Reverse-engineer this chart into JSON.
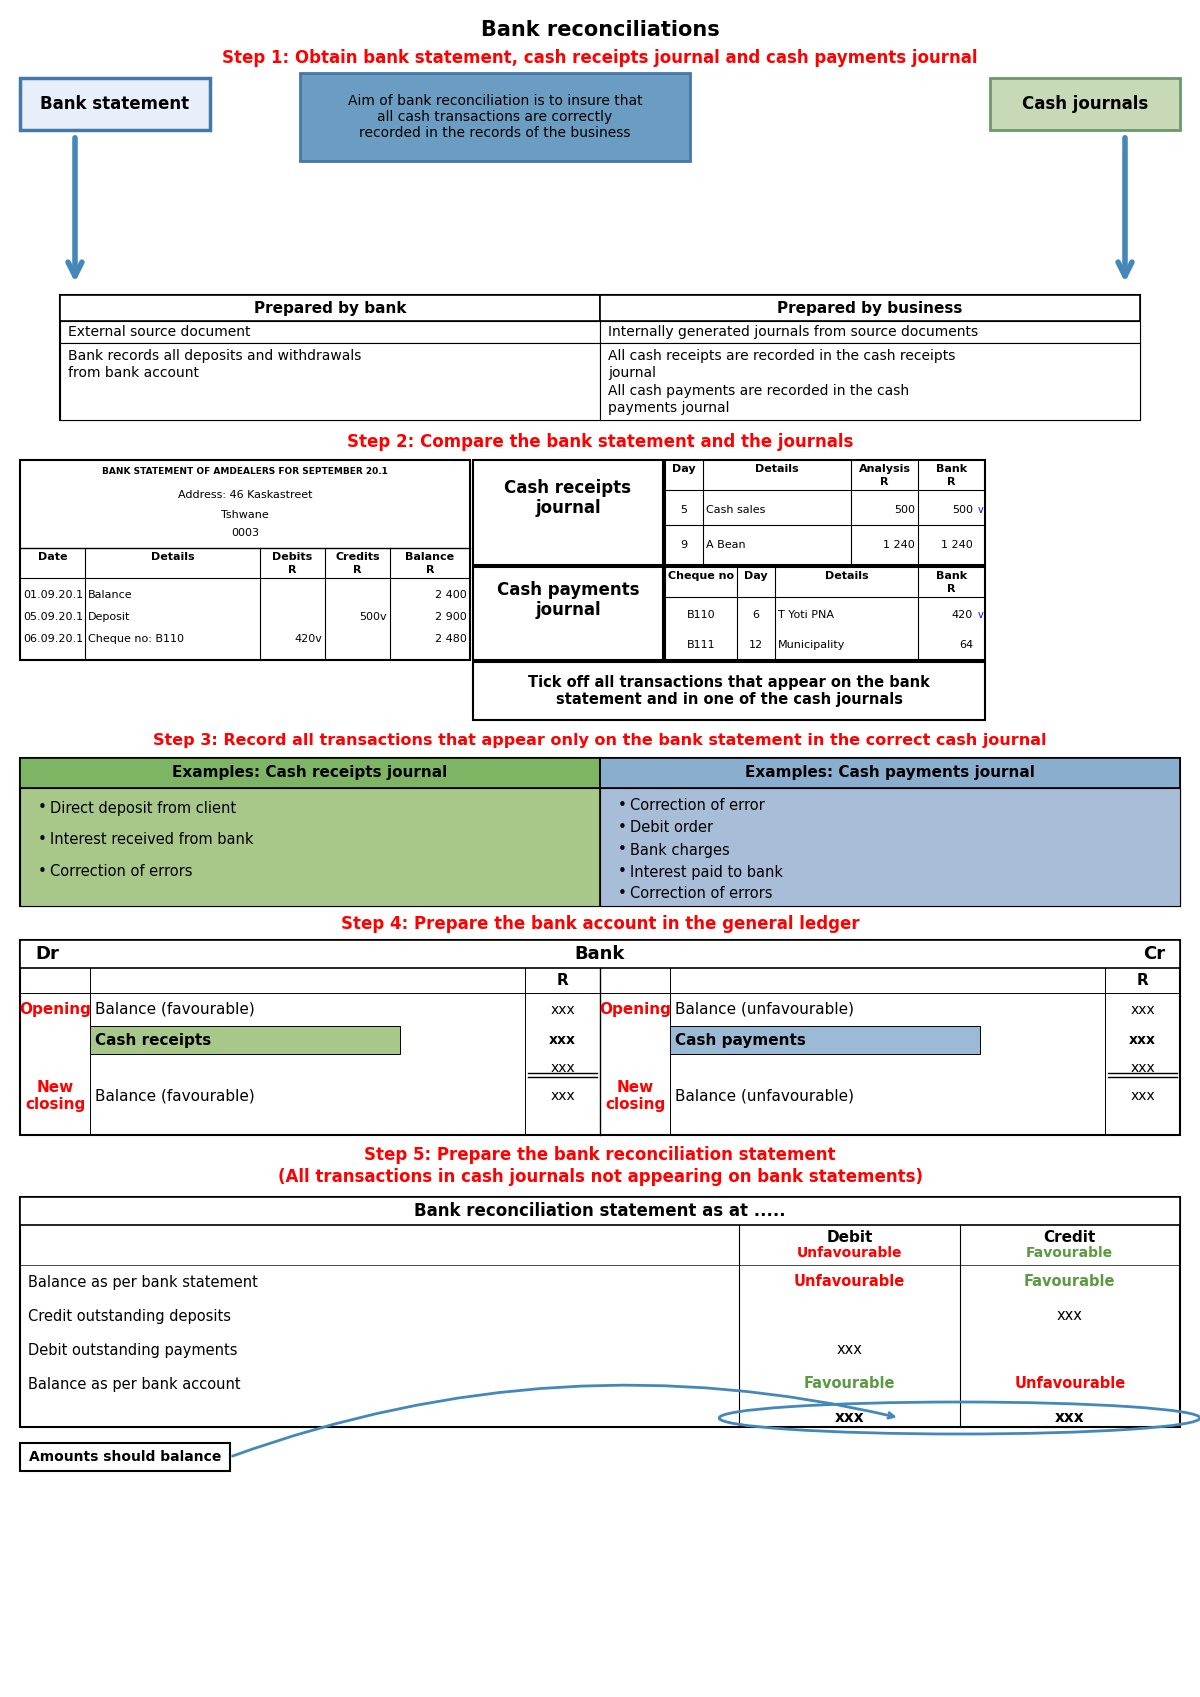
{
  "title": "Bank reconciliations",
  "step1_text": "Step 1: Obtain bank statement, cash receipts journal and cash payments journal",
  "step2_text": "Step 2: Compare the bank statement and the journals",
  "step3_text": "Step 3: Record all transactions that appear only on the bank statement in the correct cash journal",
  "step4_text": "Step 4: Prepare the bank account in the general ledger",
  "step5_line1": "Step 5: Prepare the bank reconciliation statement",
  "step5_line2": "(All transactions in cash journals not appearing on bank statements)",
  "red_color": "#FF0000",
  "blue_bg": "#6B9DC2",
  "blue_border": "#4477AA",
  "bank_stmt_bg": "#E8EEFA",
  "cash_journals_bg": "#C8D9B8",
  "cash_journals_border": "#6A9A6A",
  "green_header_bg": "#7DB564",
  "green_body_bg": "#A8C88A",
  "blue_header_bg": "#8AAECE",
  "blue_body_bg": "#A8BDD8",
  "green_cell_bg": "#A8C88A",
  "blue_cell_bg": "#9BBAD6",
  "arrow_blue": "#4488BB"
}
